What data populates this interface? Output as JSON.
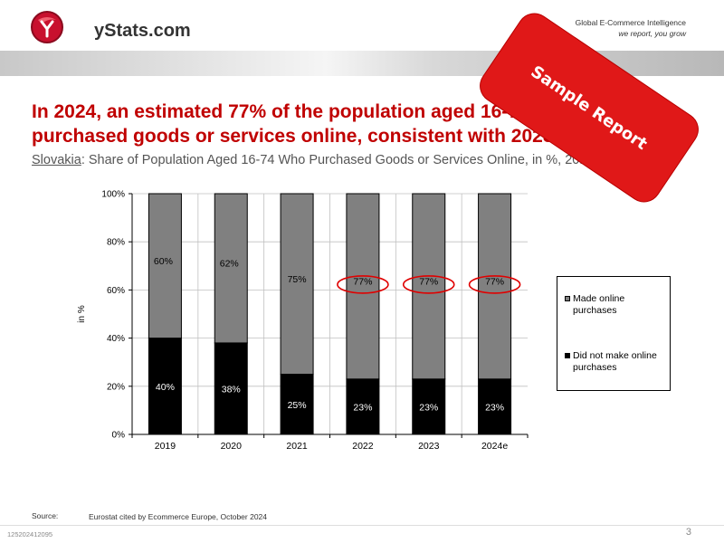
{
  "header": {
    "logo_text": "yStats.com",
    "tagline": "Global E-Commerce Intelligence",
    "tagline_sub": "we report, you grow"
  },
  "headline": "In 2024, an estimated 77% of the population aged 16-74 in Slovakia purchased goods or services online, consistent with 2023",
  "subtitle": {
    "country": "Slovakia",
    "text": ": Share of Population Aged 16-74 Who Purchased Goods or Services Online, in %, 2019-2024e"
  },
  "stamp_text": "Sample Report",
  "source": {
    "label": "Source:",
    "text": "Eurostat cited by Ecommerce Europe, October 2024"
  },
  "doc_id": "125202412095",
  "page_number": "3",
  "colors": {
    "headline": "#c00000",
    "stamp": "#e01818",
    "made_online": "#808080",
    "did_not": "#000000",
    "highlight_ellipse": "#e00000"
  },
  "chart_data": {
    "type": "bar",
    "stacked": true,
    "categories": [
      "2019",
      "2020",
      "2021",
      "2022",
      "2023",
      "2024e"
    ],
    "series": [
      {
        "name": "Did not make online purchases",
        "values": [
          40,
          38,
          25,
          23,
          23,
          23
        ],
        "labels": [
          "40%",
          "38%",
          "25%",
          "23%",
          "23%",
          "23%"
        ],
        "color": "#000000"
      },
      {
        "name": "Made online purchases",
        "values": [
          60,
          62,
          75,
          77,
          77,
          77
        ],
        "labels": [
          "60%",
          "62%",
          "75%",
          "77%",
          "77%",
          "77%"
        ],
        "color": "#808080"
      }
    ],
    "highlighted_categories": [
      "2022",
      "2023",
      "2024e"
    ],
    "ylabel": "in %",
    "ylim": [
      0,
      100
    ],
    "yticks": [
      "0%",
      "20%",
      "40%",
      "60%",
      "80%",
      "100%"
    ],
    "grid": true,
    "legend_position": "right"
  }
}
